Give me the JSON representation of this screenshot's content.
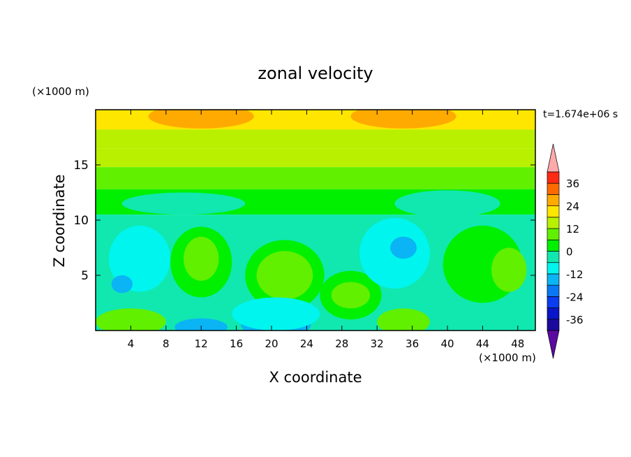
{
  "chart_data": {
    "type": "heatmap",
    "title": "zonal velocity",
    "xlabel": "X coordinate",
    "ylabel": "Z coordinate",
    "x_unit": "(×1000 m)",
    "y_unit": "(×1000 m)",
    "time_label": "t=1.674e+06 s",
    "xlim": [
      0,
      50
    ],
    "ylim": [
      0,
      20
    ],
    "x_ticks": [
      4,
      8,
      12,
      16,
      20,
      24,
      28,
      32,
      36,
      40,
      44,
      48
    ],
    "y_ticks": [
      5,
      10,
      15
    ],
    "grid": false,
    "legend": "right",
    "colorbar": {
      "levels": [
        -42,
        -36,
        -30,
        -24,
        -18,
        -12,
        -6,
        0,
        6,
        12,
        18,
        24,
        30,
        36,
        42
      ],
      "colors": [
        "#5a0aa0",
        "#1c0a9e",
        "#0a14c8",
        "#0a3cf0",
        "#0a78f5",
        "#0ab4f5",
        "#00f5ee",
        "#10e8b0",
        "#00f000",
        "#60f000",
        "#b8f000",
        "#ffe600",
        "#ffaa00",
        "#ff6a00",
        "#ff2a14",
        "#ffaaaa"
      ],
      "tick_labels": [
        "36",
        "24",
        "12",
        "0",
        "-12",
        "-24",
        "-36"
      ],
      "tick_values": [
        36,
        24,
        12,
        0,
        -12,
        -24,
        -36
      ],
      "extend": "both"
    },
    "features": [
      {
        "kind": "band",
        "z_min": 18.2,
        "z_max": 20,
        "value": 23
      },
      {
        "kind": "band",
        "z_min": 16.5,
        "z_max": 18.2,
        "value": 17
      },
      {
        "kind": "band",
        "z_min": 14.8,
        "z_max": 16.5,
        "value": 12
      },
      {
        "kind": "band",
        "z_min": 12.8,
        "z_max": 14.8,
        "value": 8
      },
      {
        "kind": "band",
        "z_min": 10.5,
        "z_max": 12.8,
        "value": 2
      },
      {
        "kind": "band",
        "z_min": 0,
        "z_max": 10.5,
        "value": -4
      },
      {
        "kind": "blob",
        "x": 12,
        "z": 19.4,
        "rx": 6,
        "rz": 1.1,
        "value": 28
      },
      {
        "kind": "blob",
        "x": 35,
        "z": 19.4,
        "rx": 6,
        "rz": 1.1,
        "value": 28
      },
      {
        "kind": "blob",
        "x": 5,
        "z": 6.5,
        "rx": 3.5,
        "rz": 3,
        "value": -9
      },
      {
        "kind": "blob",
        "x": 3,
        "z": 4.2,
        "rx": 1.2,
        "rz": 0.8,
        "value": -15
      },
      {
        "kind": "blob",
        "x": 12,
        "z": 6.2,
        "rx": 3.5,
        "rz": 3.2,
        "value": 3
      },
      {
        "kind": "blob",
        "x": 12,
        "z": 6.5,
        "rx": 2,
        "rz": 2,
        "value": 9
      },
      {
        "kind": "blob",
        "x": 21.5,
        "z": 5,
        "rx": 4.5,
        "rz": 3.2,
        "value": 3
      },
      {
        "kind": "blob",
        "x": 21.5,
        "z": 5,
        "rx": 3.2,
        "rz": 2.2,
        "value": 9
      },
      {
        "kind": "blob",
        "x": 29,
        "z": 3.2,
        "rx": 3.5,
        "rz": 2.2,
        "value": 3
      },
      {
        "kind": "blob",
        "x": 29,
        "z": 3.2,
        "rx": 2.2,
        "rz": 1.2,
        "value": 9
      },
      {
        "kind": "blob",
        "x": 34,
        "z": 7,
        "rx": 4,
        "rz": 3.2,
        "value": -9
      },
      {
        "kind": "blob",
        "x": 35,
        "z": 7.5,
        "rx": 1.5,
        "rz": 1,
        "value": -15
      },
      {
        "kind": "blob",
        "x": 44,
        "z": 6,
        "rx": 4.5,
        "rz": 3.5,
        "value": 3
      },
      {
        "kind": "blob",
        "x": 47,
        "z": 5.5,
        "rx": 2,
        "rz": 2,
        "value": 9
      },
      {
        "kind": "blob",
        "x": 4,
        "z": 0.8,
        "rx": 4,
        "rz": 1.2,
        "value": 9
      },
      {
        "kind": "blob",
        "x": 35,
        "z": 0.8,
        "rx": 3,
        "rz": 1.2,
        "value": 9
      },
      {
        "kind": "blob",
        "x": 12,
        "z": 0.3,
        "rx": 3,
        "rz": 0.8,
        "value": -15
      },
      {
        "kind": "blob",
        "x": 20.5,
        "z": 0.6,
        "rx": 4,
        "rz": 1.3,
        "value": -15
      },
      {
        "kind": "blob",
        "x": 20.5,
        "z": 1.5,
        "rx": 5,
        "rz": 1.5,
        "value": -9
      },
      {
        "kind": "blob",
        "x": 40,
        "z": 11.5,
        "rx": 6,
        "rz": 1.2,
        "value": -2
      },
      {
        "kind": "blob",
        "x": 10,
        "z": 11.5,
        "rx": 7,
        "rz": 1,
        "value": -2
      }
    ]
  }
}
